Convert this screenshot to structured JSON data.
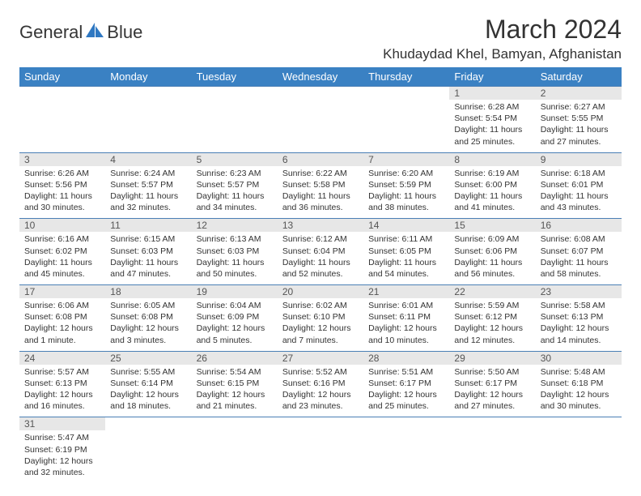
{
  "logo": {
    "brand_left": "General",
    "brand_right": "Blue"
  },
  "title": "March 2024",
  "location": "Khudaydad Khel, Bamyan, Afghanistan",
  "colors": {
    "header_bg": "#3a81c3",
    "header_fg": "#ffffff",
    "daynum_bg": "#e7e7e7",
    "rule": "#4a7fb5",
    "logo_blue": "#2f78c2"
  },
  "day_headers": [
    "Sunday",
    "Monday",
    "Tuesday",
    "Wednesday",
    "Thursday",
    "Friday",
    "Saturday"
  ],
  "weeks": [
    [
      null,
      null,
      null,
      null,
      null,
      {
        "n": "1",
        "sr": "6:28 AM",
        "ss": "5:54 PM",
        "dl": "11 hours and 25 minutes."
      },
      {
        "n": "2",
        "sr": "6:27 AM",
        "ss": "5:55 PM",
        "dl": "11 hours and 27 minutes."
      }
    ],
    [
      {
        "n": "3",
        "sr": "6:26 AM",
        "ss": "5:56 PM",
        "dl": "11 hours and 30 minutes."
      },
      {
        "n": "4",
        "sr": "6:24 AM",
        "ss": "5:57 PM",
        "dl": "11 hours and 32 minutes."
      },
      {
        "n": "5",
        "sr": "6:23 AM",
        "ss": "5:57 PM",
        "dl": "11 hours and 34 minutes."
      },
      {
        "n": "6",
        "sr": "6:22 AM",
        "ss": "5:58 PM",
        "dl": "11 hours and 36 minutes."
      },
      {
        "n": "7",
        "sr": "6:20 AM",
        "ss": "5:59 PM",
        "dl": "11 hours and 38 minutes."
      },
      {
        "n": "8",
        "sr": "6:19 AM",
        "ss": "6:00 PM",
        "dl": "11 hours and 41 minutes."
      },
      {
        "n": "9",
        "sr": "6:18 AM",
        "ss": "6:01 PM",
        "dl": "11 hours and 43 minutes."
      }
    ],
    [
      {
        "n": "10",
        "sr": "6:16 AM",
        "ss": "6:02 PM",
        "dl": "11 hours and 45 minutes."
      },
      {
        "n": "11",
        "sr": "6:15 AM",
        "ss": "6:03 PM",
        "dl": "11 hours and 47 minutes."
      },
      {
        "n": "12",
        "sr": "6:13 AM",
        "ss": "6:03 PM",
        "dl": "11 hours and 50 minutes."
      },
      {
        "n": "13",
        "sr": "6:12 AM",
        "ss": "6:04 PM",
        "dl": "11 hours and 52 minutes."
      },
      {
        "n": "14",
        "sr": "6:11 AM",
        "ss": "6:05 PM",
        "dl": "11 hours and 54 minutes."
      },
      {
        "n": "15",
        "sr": "6:09 AM",
        "ss": "6:06 PM",
        "dl": "11 hours and 56 minutes."
      },
      {
        "n": "16",
        "sr": "6:08 AM",
        "ss": "6:07 PM",
        "dl": "11 hours and 58 minutes."
      }
    ],
    [
      {
        "n": "17",
        "sr": "6:06 AM",
        "ss": "6:08 PM",
        "dl": "12 hours and 1 minute."
      },
      {
        "n": "18",
        "sr": "6:05 AM",
        "ss": "6:08 PM",
        "dl": "12 hours and 3 minutes."
      },
      {
        "n": "19",
        "sr": "6:04 AM",
        "ss": "6:09 PM",
        "dl": "12 hours and 5 minutes."
      },
      {
        "n": "20",
        "sr": "6:02 AM",
        "ss": "6:10 PM",
        "dl": "12 hours and 7 minutes."
      },
      {
        "n": "21",
        "sr": "6:01 AM",
        "ss": "6:11 PM",
        "dl": "12 hours and 10 minutes."
      },
      {
        "n": "22",
        "sr": "5:59 AM",
        "ss": "6:12 PM",
        "dl": "12 hours and 12 minutes."
      },
      {
        "n": "23",
        "sr": "5:58 AM",
        "ss": "6:13 PM",
        "dl": "12 hours and 14 minutes."
      }
    ],
    [
      {
        "n": "24",
        "sr": "5:57 AM",
        "ss": "6:13 PM",
        "dl": "12 hours and 16 minutes."
      },
      {
        "n": "25",
        "sr": "5:55 AM",
        "ss": "6:14 PM",
        "dl": "12 hours and 18 minutes."
      },
      {
        "n": "26",
        "sr": "5:54 AM",
        "ss": "6:15 PM",
        "dl": "12 hours and 21 minutes."
      },
      {
        "n": "27",
        "sr": "5:52 AM",
        "ss": "6:16 PM",
        "dl": "12 hours and 23 minutes."
      },
      {
        "n": "28",
        "sr": "5:51 AM",
        "ss": "6:17 PM",
        "dl": "12 hours and 25 minutes."
      },
      {
        "n": "29",
        "sr": "5:50 AM",
        "ss": "6:17 PM",
        "dl": "12 hours and 27 minutes."
      },
      {
        "n": "30",
        "sr": "5:48 AM",
        "ss": "6:18 PM",
        "dl": "12 hours and 30 minutes."
      }
    ],
    [
      {
        "n": "31",
        "sr": "5:47 AM",
        "ss": "6:19 PM",
        "dl": "12 hours and 32 minutes."
      },
      null,
      null,
      null,
      null,
      null,
      null
    ]
  ],
  "labels": {
    "sunrise": "Sunrise:",
    "sunset": "Sunset:",
    "daylight": "Daylight:"
  }
}
